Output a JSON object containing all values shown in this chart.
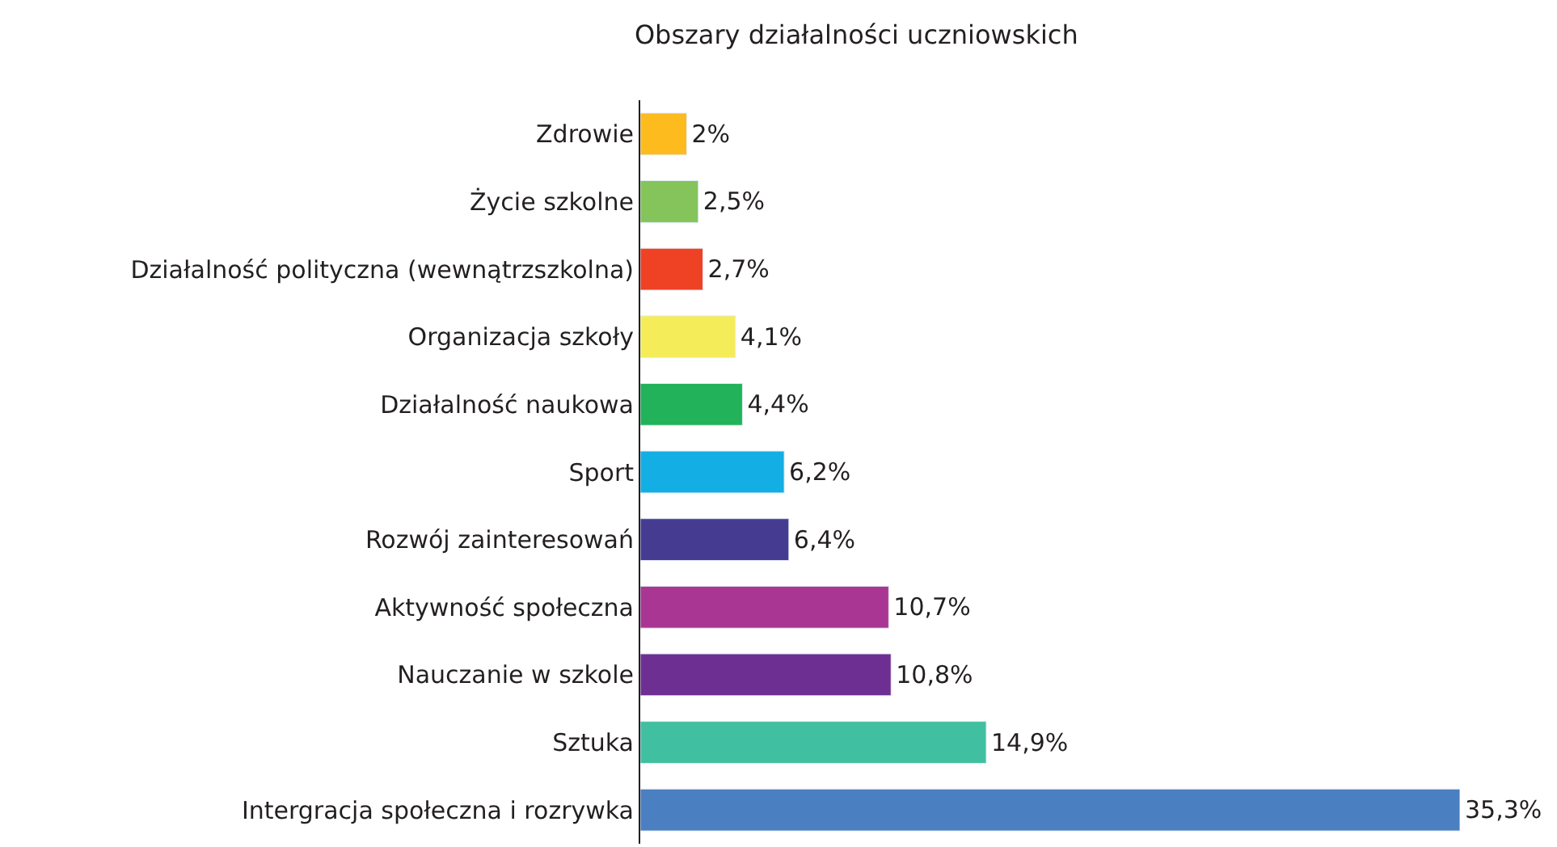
{
  "chart_data": {
    "type": "bar",
    "orientation": "horizontal",
    "title": "Obszary działalności uczniowskich",
    "categories": [
      "Zdrowie",
      "Życie szkolne",
      "Działalność polityczna (wewnątrzszkolna)",
      "Organizacja szkoły",
      "Działalność naukowa",
      "Sport",
      "Rozwój zainteresowań",
      "Aktywność społeczna",
      "Nauczanie w szkole",
      "Sztuka",
      "Intergracja społeczna i rozrywka"
    ],
    "values": [
      2,
      2.5,
      2.7,
      4.1,
      4.4,
      6.2,
      6.4,
      10.7,
      10.8,
      14.9,
      35.3
    ],
    "value_labels": [
      "2%",
      "2,5%",
      "2,7%",
      "4,1%",
      "4,4%",
      "6,2%",
      "6,4%",
      "10,7%",
      "10,8%",
      "14,9%",
      "35,3%"
    ],
    "colors": [
      "#fdbb1e",
      "#84c45a",
      "#ef4123",
      "#f5ec5a",
      "#22b25a",
      "#12aee4",
      "#453c92",
      "#a93692",
      "#6d2f91",
      "#41bfa1",
      "#4a7fc1"
    ]
  }
}
